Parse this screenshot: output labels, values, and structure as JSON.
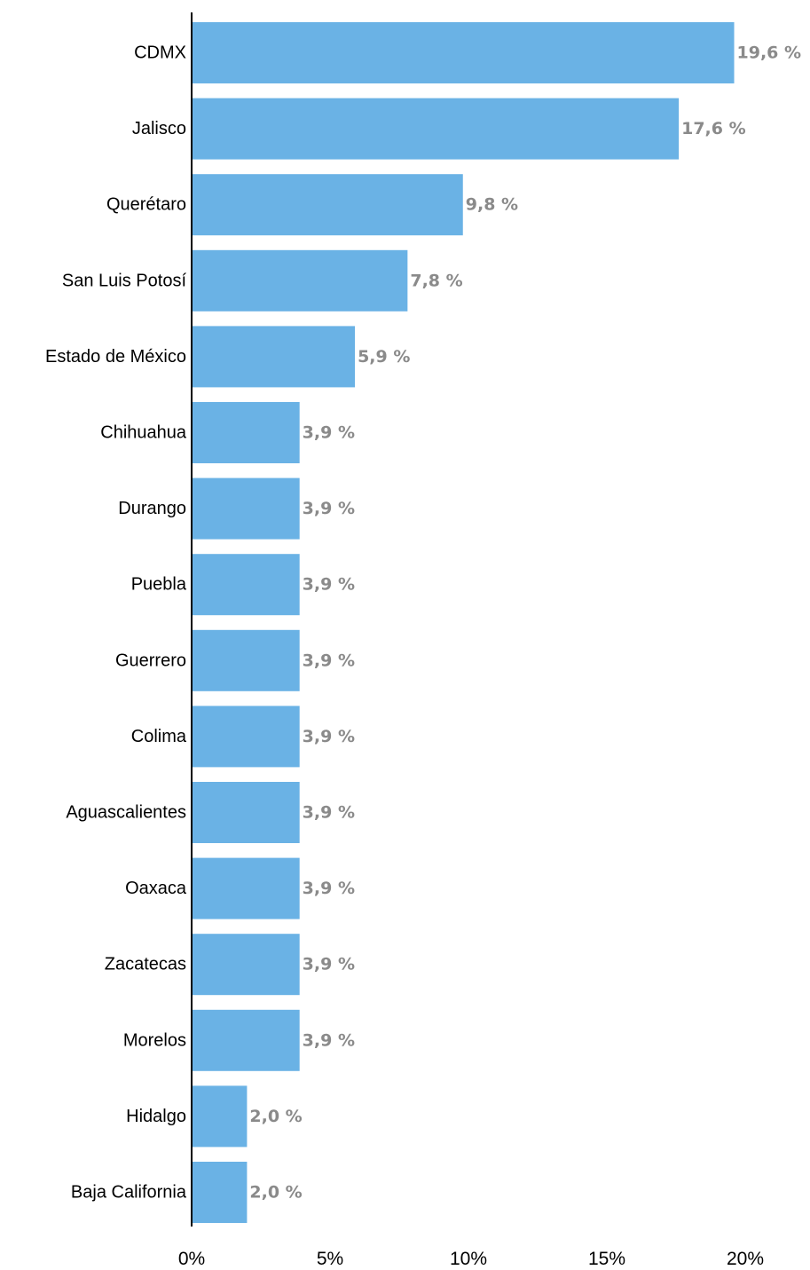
{
  "chart_data": {
    "type": "bar",
    "orientation": "horizontal",
    "categories": [
      "CDMX",
      "Jalisco",
      "Querétaro",
      "San Luis Potosí",
      "Estado de México",
      "Chihuahua",
      "Durango",
      "Puebla",
      "Guerrero",
      "Colima",
      "Aguascalientes",
      "Oaxaca",
      "Zacatecas",
      "Morelos",
      "Hidalgo",
      "Baja California"
    ],
    "values": [
      19.6,
      17.6,
      9.8,
      7.8,
      5.9,
      3.9,
      3.9,
      3.9,
      3.9,
      3.9,
      3.9,
      3.9,
      3.9,
      3.9,
      2.0,
      2.0
    ],
    "data_labels": [
      "19,6 %",
      "17,6 %",
      "9,8 %",
      "7,8 %",
      "5,9 %",
      "3,9 %",
      "3,9 %",
      "3,9 %",
      "3,9 %",
      "3,9 %",
      "3,9 %",
      "3,9 %",
      "3,9 %",
      "3,9 %",
      "2,0 %",
      "2,0 %"
    ],
    "x_ticks": [
      0,
      5,
      10,
      15,
      20
    ],
    "x_tick_labels": [
      "0%",
      "5%",
      "10%",
      "15%",
      "20%"
    ],
    "xlim": [
      0,
      20
    ],
    "title": "",
    "xlabel": "",
    "ylabel": "",
    "grid": false,
    "bar_color": "#6AB2E5",
    "value_label_color": "#8A8A8A",
    "axis_color": "#000000"
  }
}
